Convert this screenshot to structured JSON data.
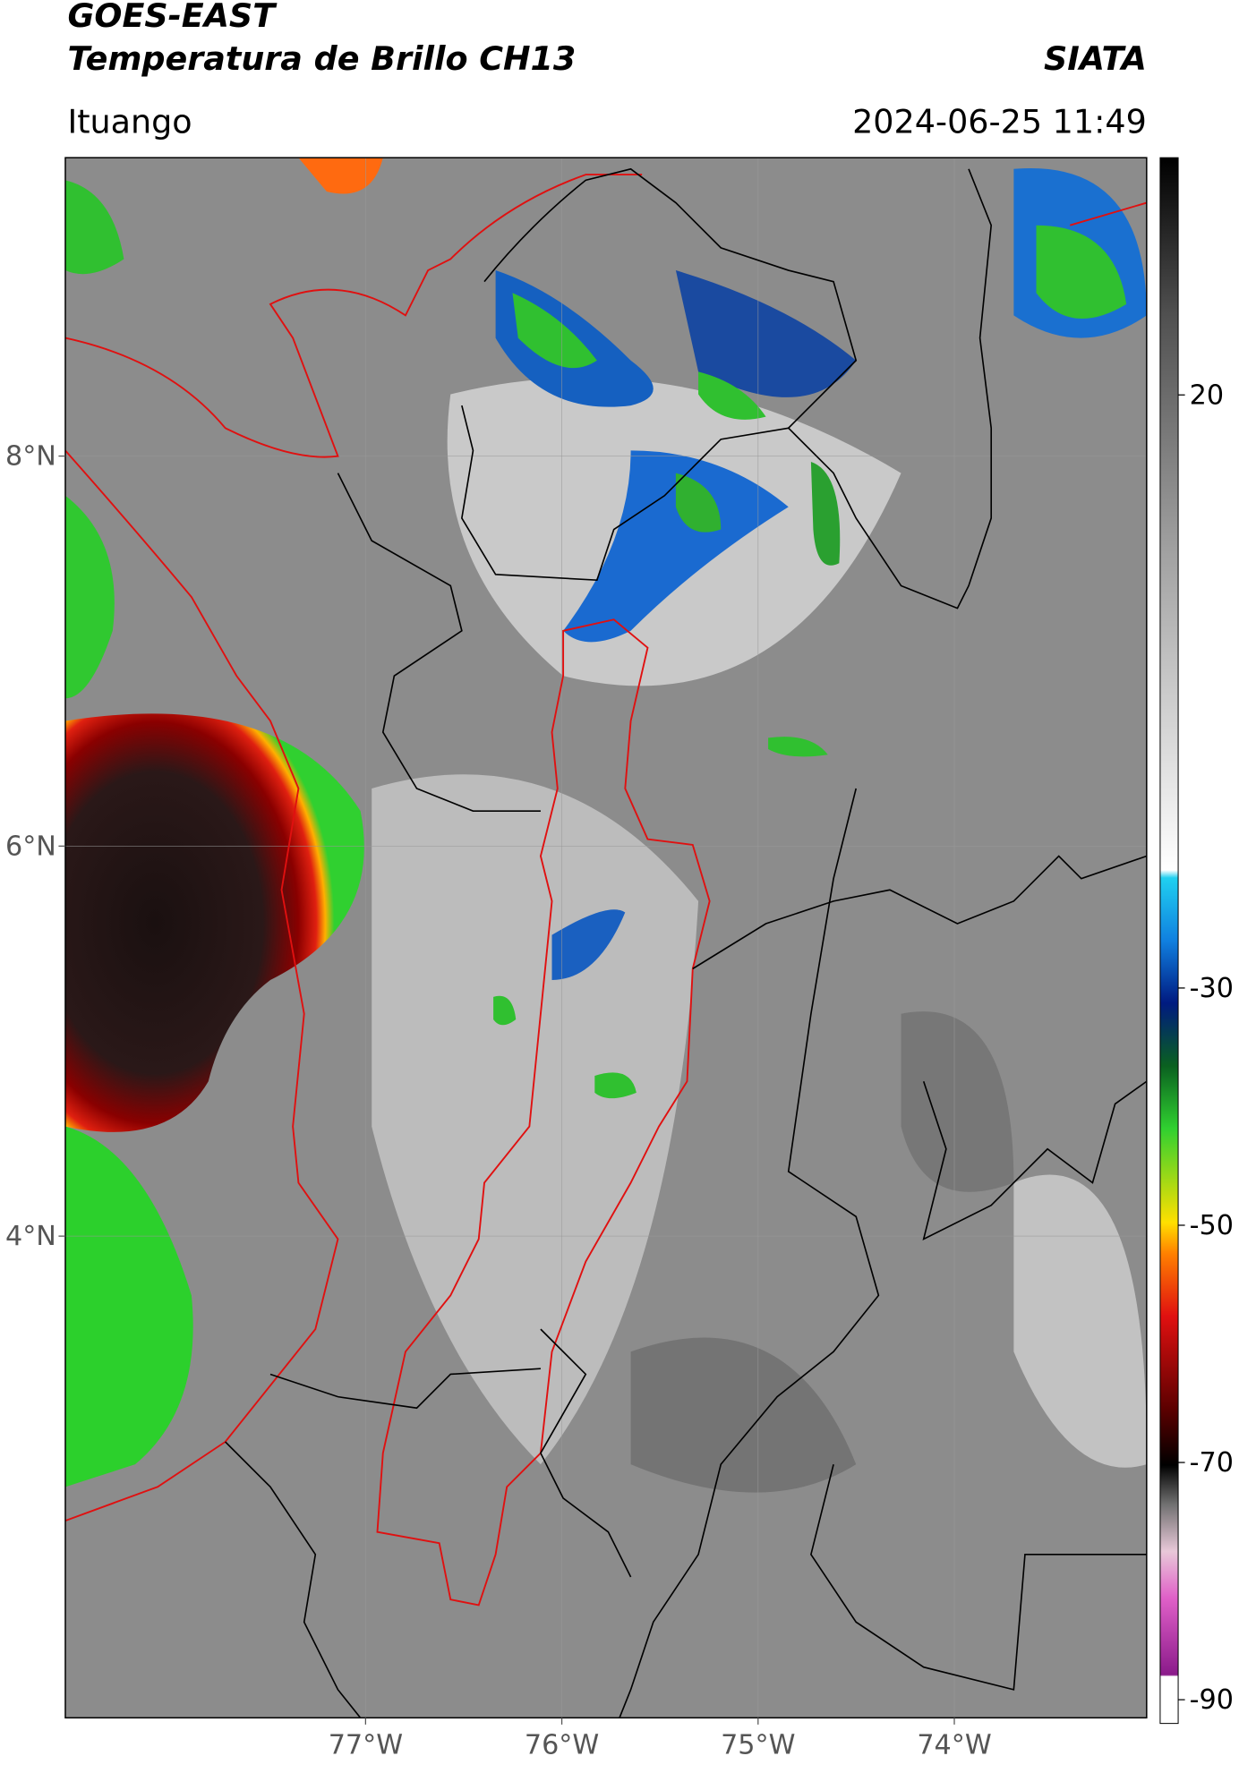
{
  "header": {
    "title_line1": "GOES-EAST",
    "title_line2": "Temperatura de Brillo CH13",
    "organization": "SIATA",
    "location": "Ituango",
    "datetime": "2024-06-25 11:49"
  },
  "map": {
    "lonlim": [
      -78.53,
      -73.02
    ],
    "latlim": [
      1.53,
      9.53
    ],
    "lon_ticks": [
      {
        "value": -77,
        "label": "77°W"
      },
      {
        "value": -76,
        "label": "76°W"
      },
      {
        "value": -75,
        "label": "75°W"
      },
      {
        "value": -74,
        "label": "74°W"
      }
    ],
    "lat_ticks": [
      {
        "value": 8,
        "label": "8°N"
      },
      {
        "value": 6,
        "label": "6°N"
      },
      {
        "value": 4,
        "label": "4°N"
      }
    ]
  },
  "colorbar": {
    "lim": [
      -92,
      40
    ],
    "ticks": [
      20,
      -30,
      -50,
      -70,
      -90
    ]
  }
}
